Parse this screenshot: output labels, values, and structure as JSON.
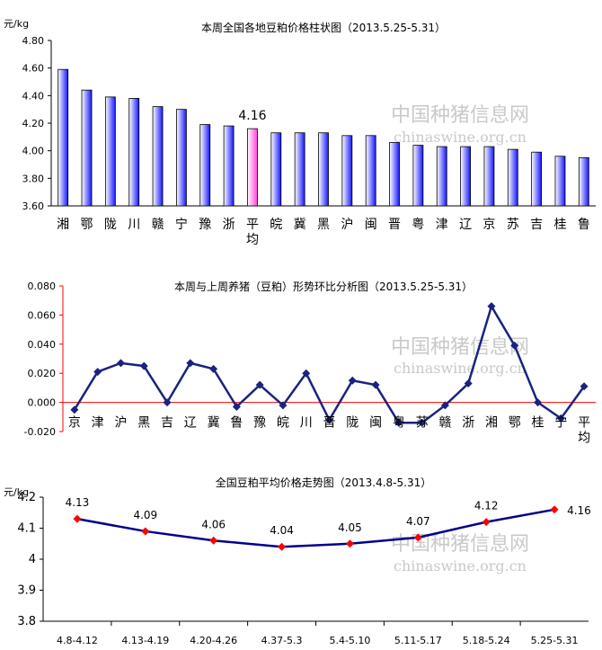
{
  "watermark": {
    "name": "中国种猪信息网",
    "url": "chinaswine.org.cn"
  },
  "chart_data": [
    {
      "type": "bar",
      "title": "本周全国各地豆粕价格柱状图（2013.5.25-5.31）",
      "ylabel": "元/kg",
      "ylim": [
        3.6,
        4.8
      ],
      "yticks": [
        "3.60",
        "3.80",
        "4.00",
        "4.20",
        "4.40",
        "4.60",
        "4.80"
      ],
      "categories": [
        "湘",
        "鄂",
        "陇",
        "川",
        "赣",
        "宁",
        "豫",
        "浙",
        "平均",
        "皖",
        "冀",
        "黑",
        "沪",
        "闽",
        "晋",
        "粤",
        "津",
        "辽",
        "京",
        "苏",
        "吉",
        "桂",
        "鲁"
      ],
      "values": [
        4.59,
        4.44,
        4.39,
        4.38,
        4.32,
        4.3,
        4.19,
        4.18,
        4.16,
        4.13,
        4.13,
        4.13,
        4.11,
        4.11,
        4.06,
        4.04,
        4.03,
        4.03,
        4.03,
        4.01,
        3.99,
        3.96,
        3.95
      ],
      "highlight_index": 8,
      "highlight_label": "4.16",
      "colors": {
        "bar": "#1616ff",
        "highlight": "#ff44dd"
      }
    },
    {
      "type": "line",
      "title": "本周与上周养猪（豆粕）形势环比分析图（2013.5.25-5.31）",
      "ylim": [
        -0.02,
        0.08
      ],
      "yticks": [
        "-0.020",
        "0.000",
        "0.020",
        "0.040",
        "0.060",
        "0.080"
      ],
      "categories": [
        "京",
        "津",
        "沪",
        "黑",
        "吉",
        "辽",
        "冀",
        "鲁",
        "豫",
        "皖",
        "川",
        "晋",
        "陇",
        "闽",
        "粤",
        "苏",
        "赣",
        "浙",
        "湘",
        "鄂",
        "桂",
        "宁",
        "平均"
      ],
      "values": [
        -0.005,
        0.021,
        0.027,
        0.025,
        0.0,
        0.027,
        0.023,
        -0.003,
        0.012,
        -0.002,
        0.02,
        -0.012,
        0.015,
        0.012,
        -0.014,
        -0.014,
        -0.002,
        0.013,
        0.066,
        0.039,
        0.0,
        -0.011,
        0.011
      ],
      "colors": {
        "line": "#1a237e",
        "axis": "#ff0000"
      }
    },
    {
      "type": "line",
      "title": "全国豆粕平均价格走势图（2013.4.8-5.31）",
      "ylabel": "元/kg",
      "ylim": [
        3.8,
        4.2
      ],
      "yticks": [
        "3.8",
        "3.9",
        "4",
        "4.1",
        "4.2"
      ],
      "categories": [
        "4.8-4.12",
        "4.13-4.19",
        "4.20-4.26",
        "4.37-5.3",
        "5.4-5.10",
        "5.11-5.17",
        "5.18-5.24",
        "5.25-5.31"
      ],
      "values": [
        4.13,
        4.09,
        4.06,
        4.04,
        4.05,
        4.07,
        4.12,
        4.16
      ],
      "labels": [
        "4.13",
        "4.09",
        "4.06",
        "4.04",
        "4.05",
        "4.07",
        "4.12",
        "4.16"
      ],
      "colors": {
        "line": "#00008b",
        "marker": "#ff0000"
      }
    }
  ]
}
